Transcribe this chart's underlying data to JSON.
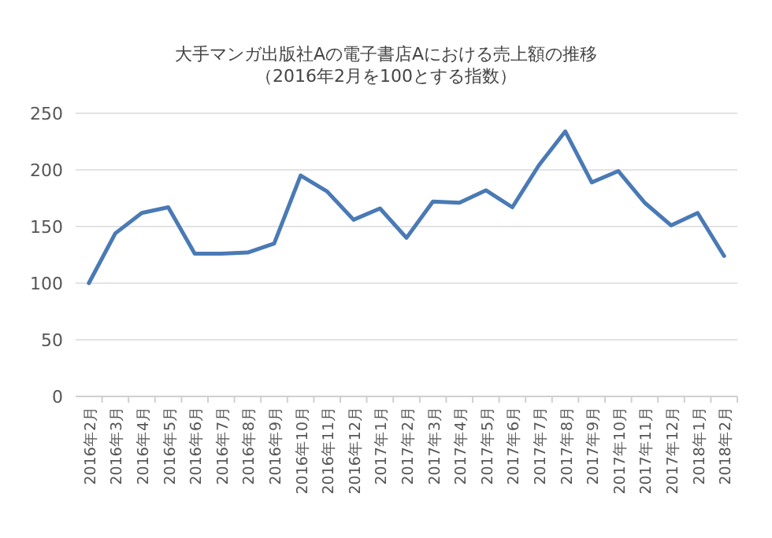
{
  "chart_data": {
    "type": "line",
    "title": "大手マンガ出版社Aの電子書店Aにおける売上額の推移",
    "subtitle": "（2016年2月を100とする指数）",
    "categories": [
      "2016年2月",
      "2016年3月",
      "2016年4月",
      "2016年5月",
      "2016年6月",
      "2016年7月",
      "2016年8月",
      "2016年9月",
      "2016年10月",
      "2016年11月",
      "2016年12月",
      "2017年1月",
      "2017年2月",
      "2017年3月",
      "2017年4月",
      "2017年5月",
      "2017年6月",
      "2017年7月",
      "2017年8月",
      "2017年9月",
      "2017年10月",
      "2017年11月",
      "2017年12月",
      "2018年1月",
      "2018年2月"
    ],
    "series": [
      {
        "color": "#4a7ab5",
        "values": [
          100,
          144,
          162,
          167,
          126,
          126,
          127,
          135,
          195,
          181,
          156,
          166,
          140,
          172,
          171,
          182,
          167,
          204,
          234,
          189,
          199,
          171,
          151,
          162,
          124
        ]
      }
    ],
    "ylim": [
      0,
      250
    ],
    "yticks": [
      0,
      50,
      100,
      150,
      200,
      250
    ],
    "grid": "y",
    "marker": "none",
    "line_style": "solid"
  }
}
